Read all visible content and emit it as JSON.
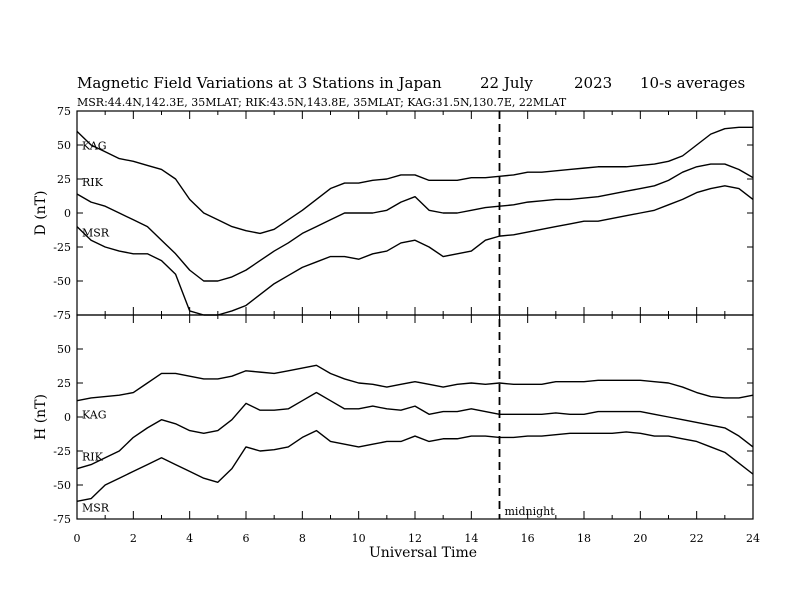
{
  "title_parts": {
    "main": "Magnetic Field Variations at 3 Stations in Japan",
    "date": "22 July",
    "year": "2023",
    "averaging": "10-s averages"
  },
  "subtitle": "MSR:44.4N,142.3E, 35MLAT;  RIK:43.5N,143.8E, 35MLAT;  KAG:31.5N,130.7E, 22MLAT",
  "chart_data": [
    {
      "type": "line",
      "ylabel": "D (nT)",
      "xlim": [
        0,
        24
      ],
      "ylim": [
        -75,
        75
      ],
      "yticks": [
        "75",
        "50",
        "25",
        "0",
        "-25",
        "-50",
        "-75"
      ],
      "series": [
        {
          "name": "KAG",
          "x": [
            0,
            0.5,
            1,
            1.5,
            2,
            2.5,
            3,
            3.5,
            4,
            4.5,
            5,
            5.5,
            6,
            6.5,
            7,
            7.5,
            8,
            8.5,
            9,
            9.5,
            10,
            10.5,
            11,
            11.5,
            12,
            12.5,
            13,
            13.5,
            14,
            14.5,
            15,
            15.5,
            16,
            16.5,
            17,
            17.5,
            18,
            18.5,
            19,
            19.5,
            20,
            20.5,
            21,
            21.5,
            22,
            22.5,
            23,
            23.5,
            24
          ],
          "y": [
            60,
            50,
            45,
            40,
            38,
            35,
            32,
            25,
            10,
            0,
            -5,
            -10,
            -13,
            -15,
            -12,
            -5,
            2,
            10,
            18,
            22,
            22,
            24,
            25,
            28,
            28,
            24,
            24,
            24,
            26,
            26,
            27,
            28,
            30,
            30,
            31,
            32,
            33,
            34,
            34,
            34,
            35,
            36,
            38,
            42,
            50,
            58,
            62,
            63,
            63
          ]
        },
        {
          "name": "RIK",
          "x": [
            0,
            0.5,
            1,
            1.5,
            2,
            2.5,
            3,
            3.5,
            4,
            4.5,
            5,
            5.5,
            6,
            6.5,
            7,
            7.5,
            8,
            8.5,
            9,
            9.5,
            10,
            10.5,
            11,
            11.5,
            12,
            12.5,
            13,
            13.5,
            14,
            14.5,
            15,
            15.5,
            16,
            16.5,
            17,
            17.5,
            18,
            18.5,
            19,
            19.5,
            20,
            20.5,
            21,
            21.5,
            22,
            22.5,
            23,
            23.5,
            24
          ],
          "y": [
            14,
            8,
            5,
            0,
            -5,
            -10,
            -20,
            -30,
            -42,
            -50,
            -50,
            -47,
            -42,
            -35,
            -28,
            -22,
            -15,
            -10,
            -5,
            0,
            0,
            0,
            2,
            8,
            12,
            2,
            0,
            0,
            2,
            4,
            5,
            6,
            8,
            9,
            10,
            10,
            11,
            12,
            14,
            16,
            18,
            20,
            24,
            30,
            34,
            36,
            36,
            32,
            26
          ]
        },
        {
          "name": "MSR",
          "x": [
            0,
            0.5,
            1,
            1.5,
            2,
            2.5,
            3,
            3.5,
            4,
            4.5,
            5,
            5.5,
            6,
            6.5,
            7,
            7.5,
            8,
            8.5,
            9,
            9.5,
            10,
            10.5,
            11,
            11.5,
            12,
            12.5,
            13,
            13.5,
            14,
            14.5,
            15,
            15.5,
            16,
            16.5,
            17,
            17.5,
            18,
            18.5,
            19,
            19.5,
            20,
            20.5,
            21,
            21.5,
            22,
            22.5,
            23,
            23.5,
            24
          ],
          "y": [
            -10,
            -20,
            -25,
            -28,
            -30,
            -30,
            -35,
            -45,
            -72,
            -75,
            -75,
            -72,
            -68,
            -60,
            -52,
            -46,
            -40,
            -36,
            -32,
            -32,
            -34,
            -30,
            -28,
            -22,
            -20,
            -25,
            -32,
            -30,
            -28,
            -20,
            -17,
            -16,
            -14,
            -12,
            -10,
            -8,
            -6,
            -6,
            -4,
            -2,
            0,
            2,
            6,
            10,
            15,
            18,
            20,
            18,
            10
          ]
        }
      ]
    },
    {
      "type": "line",
      "ylabel": "H (nT)",
      "xlabel": "Universal Time",
      "xlim": [
        0,
        24
      ],
      "ylim": [
        -75,
        75
      ],
      "xticks": [
        "0",
        "2",
        "4",
        "6",
        "8",
        "10",
        "12",
        "14",
        "16",
        "18",
        "20",
        "22",
        "24"
      ],
      "yticks": [
        "50",
        "25",
        "0",
        "-25",
        "-50",
        "-75"
      ],
      "vline": {
        "x": 15,
        "label": "midnight",
        "style": "dashed"
      },
      "series": [
        {
          "name": "KAG",
          "x": [
            0,
            0.5,
            1,
            1.5,
            2,
            2.5,
            3,
            3.5,
            4,
            4.5,
            5,
            5.5,
            6,
            6.5,
            7,
            7.5,
            8,
            8.5,
            9,
            9.5,
            10,
            10.5,
            11,
            11.5,
            12,
            12.5,
            13,
            13.5,
            14,
            14.5,
            15,
            15.5,
            16,
            16.5,
            17,
            17.5,
            18,
            18.5,
            19,
            19.5,
            20,
            20.5,
            21,
            21.5,
            22,
            22.5,
            23,
            23.5,
            24
          ],
          "y": [
            12,
            14,
            15,
            16,
            18,
            25,
            32,
            32,
            30,
            28,
            28,
            30,
            34,
            33,
            32,
            34,
            36,
            38,
            32,
            28,
            25,
            24,
            22,
            24,
            26,
            24,
            22,
            24,
            25,
            24,
            25,
            24,
            24,
            24,
            26,
            26,
            26,
            27,
            27,
            27,
            27,
            26,
            25,
            22,
            18,
            15,
            14,
            14,
            16
          ]
        },
        {
          "name": "RIK",
          "x": [
            0,
            0.5,
            1,
            1.5,
            2,
            2.5,
            3,
            3.5,
            4,
            4.5,
            5,
            5.5,
            6,
            6.5,
            7,
            7.5,
            8,
            8.5,
            9,
            9.5,
            10,
            10.5,
            11,
            11.5,
            12,
            12.5,
            13,
            13.5,
            14,
            14.5,
            15,
            15.5,
            16,
            16.5,
            17,
            17.5,
            18,
            18.5,
            19,
            19.5,
            20,
            20.5,
            21,
            21.5,
            22,
            22.5,
            23,
            23.5,
            24
          ],
          "y": [
            -38,
            -35,
            -30,
            -25,
            -15,
            -8,
            -2,
            -5,
            -10,
            -12,
            -10,
            -2,
            10,
            5,
            5,
            6,
            12,
            18,
            12,
            6,
            6,
            8,
            6,
            5,
            8,
            2,
            4,
            4,
            6,
            4,
            2,
            2,
            2,
            2,
            3,
            2,
            2,
            4,
            4,
            4,
            4,
            2,
            0,
            -2,
            -4,
            -6,
            -8,
            -14,
            -22
          ]
        },
        {
          "name": "MSR",
          "x": [
            0,
            0.5,
            1,
            1.5,
            2,
            2.5,
            3,
            3.5,
            4,
            4.5,
            5,
            5.5,
            6,
            6.5,
            7,
            7.5,
            8,
            8.5,
            9,
            9.5,
            10,
            10.5,
            11,
            11.5,
            12,
            12.5,
            13,
            13.5,
            14,
            14.5,
            15,
            15.5,
            16,
            16.5,
            17,
            17.5,
            18,
            18.5,
            19,
            19.5,
            20,
            20.5,
            21,
            21.5,
            22,
            22.5,
            23,
            23.5,
            24
          ],
          "y": [
            -62,
            -60,
            -50,
            -45,
            -40,
            -35,
            -30,
            -35,
            -40,
            -45,
            -48,
            -38,
            -22,
            -25,
            -24,
            -22,
            -15,
            -10,
            -18,
            -20,
            -22,
            -20,
            -18,
            -18,
            -14,
            -18,
            -16,
            -16,
            -14,
            -14,
            -15,
            -15,
            -14,
            -14,
            -13,
            -12,
            -12,
            -12,
            -12,
            -11,
            -12,
            -14,
            -14,
            -16,
            -18,
            -22,
            -26,
            -34,
            -42
          ]
        }
      ]
    }
  ]
}
